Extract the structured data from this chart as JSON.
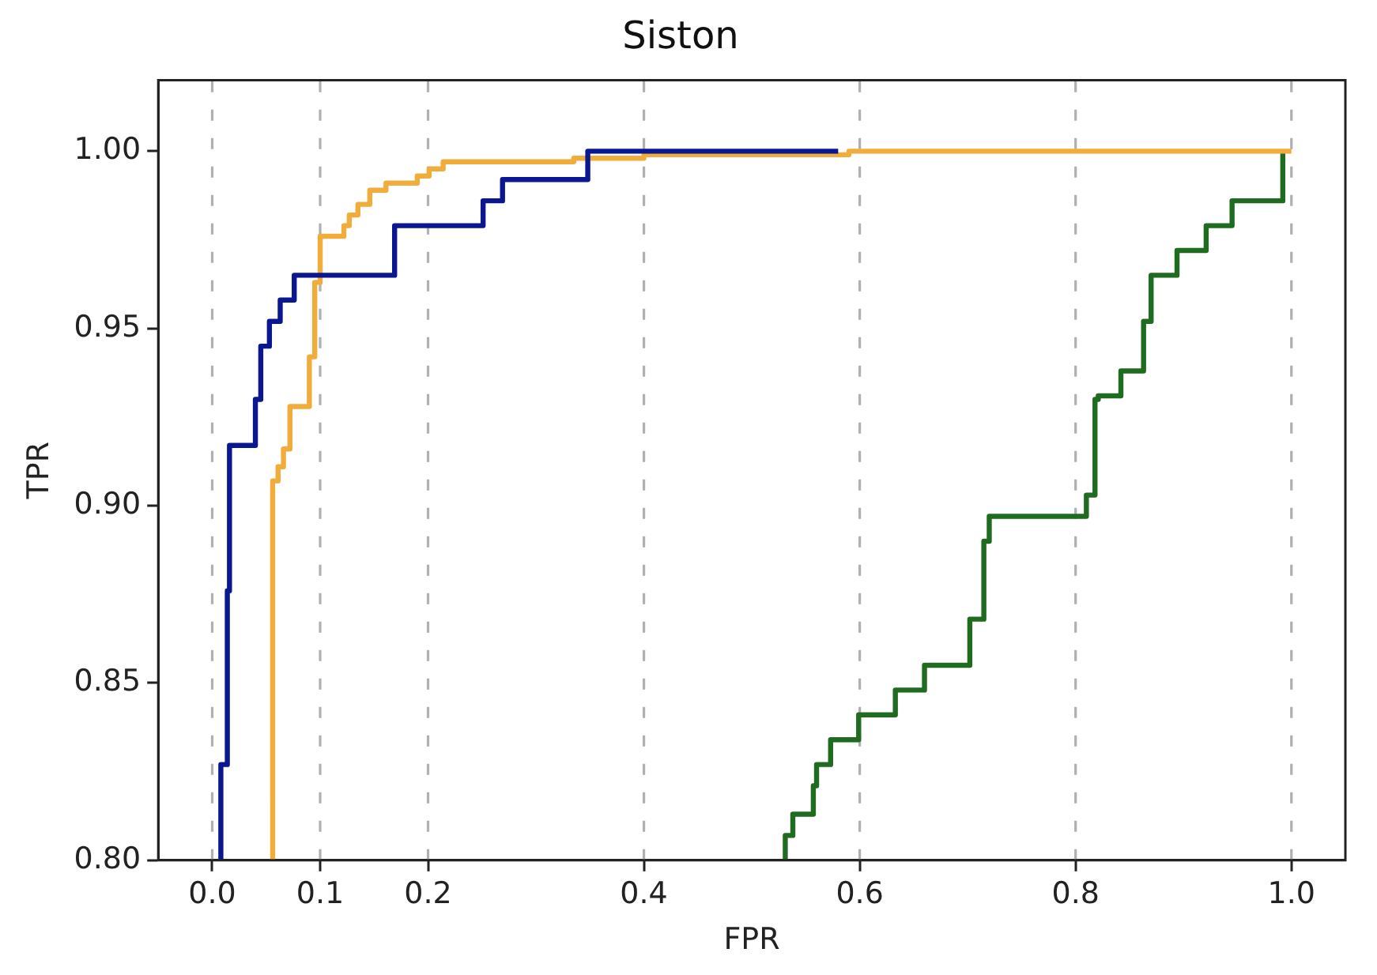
{
  "chart_data": {
    "type": "step",
    "title": "Siston",
    "xlabel": "FPR",
    "ylabel": "TPR",
    "xlim": [
      -0.05,
      1.05
    ],
    "ylim": [
      0.8,
      1.02
    ],
    "xticks": [
      {
        "value": 0,
        "label": "0.0"
      },
      0.1,
      0.2,
      0.4,
      0.6,
      0.8,
      {
        "value": 1,
        "label": "1.0"
      }
    ],
    "yticks": [
      {
        "value": 0.8,
        "label": "0.80"
      },
      0.85,
      {
        "value": 0.9,
        "label": "0.90"
      },
      0.95,
      {
        "value": 1,
        "label": "1.00"
      }
    ],
    "grid": "x",
    "legend": false,
    "series": [
      {
        "color": "#0b1790",
        "x": [
          0.006,
          0.008,
          0.014,
          0.016,
          0.04,
          0.045,
          0.053,
          0.063,
          0.076,
          0.169,
          0.251,
          0.269,
          0.348,
          0.58
        ],
        "values": [
          0.8,
          0.827,
          0.876,
          0.917,
          0.93,
          0.945,
          0.952,
          0.958,
          0.965,
          0.979,
          0.986,
          0.992,
          1.0,
          1.0
        ]
      },
      {
        "color": "#f0ad3c",
        "x": [
          0.056,
          0.056,
          0.061,
          0.066,
          0.072,
          0.09,
          0.095,
          0.1,
          0.122,
          0.127,
          0.135,
          0.146,
          0.161,
          0.19,
          0.201,
          0.214,
          0.335,
          0.4,
          0.59,
          1.0
        ],
        "values": [
          0.8,
          0.907,
          0.911,
          0.916,
          0.928,
          0.942,
          0.963,
          0.976,
          0.979,
          0.982,
          0.985,
          0.989,
          0.991,
          0.993,
          0.995,
          0.997,
          0.998,
          0.999,
          1.0,
          1.0
        ]
      },
      {
        "color": "#1f6b1f",
        "x": [
          0.531,
          0.531,
          0.538,
          0.557,
          0.56,
          0.573,
          0.599,
          0.633,
          0.66,
          0.702,
          0.715,
          0.72,
          0.81,
          0.818,
          0.821,
          0.842,
          0.863,
          0.87,
          0.894,
          0.921,
          0.945,
          0.992
        ],
        "values": [
          0.8,
          0.807,
          0.813,
          0.821,
          0.827,
          0.834,
          0.841,
          0.848,
          0.855,
          0.868,
          0.89,
          0.897,
          0.903,
          0.93,
          0.931,
          0.938,
          0.952,
          0.965,
          0.972,
          0.979,
          0.986,
          1.0
        ]
      }
    ]
  }
}
